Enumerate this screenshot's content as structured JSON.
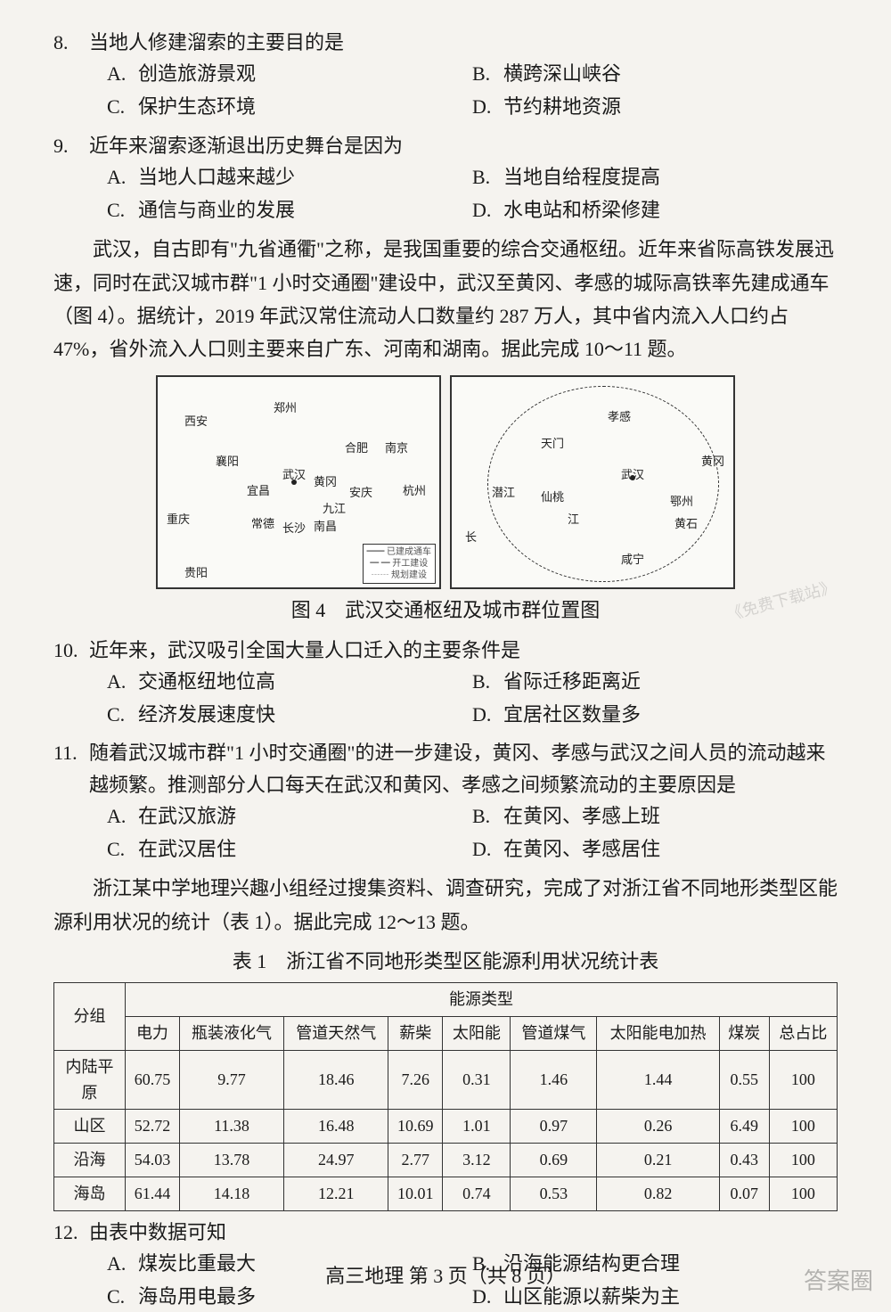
{
  "q8": {
    "num": "8.",
    "stem": "当地人修建溜索的主要目的是",
    "A": "创造旅游景观",
    "B": "横跨深山峡谷",
    "C": "保护生态环境",
    "D": "节约耕地资源"
  },
  "q9": {
    "num": "9.",
    "stem": "近年来溜索逐渐退出历史舞台是因为",
    "A": "当地人口越来越少",
    "B": "当地自给程度提高",
    "C": "通信与商业的发展",
    "D": "水电站和桥梁修建"
  },
  "passage_wuhan": "武汉，自古即有\"九省通衢\"之称，是我国重要的综合交通枢纽。近年来省际高铁发展迅速，同时在武汉城市群\"1 小时交通圈\"建设中，武汉至黄冈、孝感的城际高铁率先建成通车（图 4）。据统计，2019 年武汉常住流动人口数量约 287 万人，其中省内流入人口约占 47%，省外流入人口则主要来自广东、河南和湖南。据此完成 10～11 题。",
  "figure4": {
    "caption": "图 4　武汉交通枢纽及城市群位置图",
    "map1_cities": {
      "xian": "西安",
      "zhengzhou": "郑州",
      "hefei": "合肥",
      "nanjing": "南京",
      "xiangyang": "襄阳",
      "yichang": "宜昌",
      "wuhan": "武汉",
      "huanggang": "黄冈",
      "anqing": "安庆",
      "hangzhou": "杭州",
      "jiujiang": "九江",
      "chongqing": "重庆",
      "changde": "常德",
      "changsha": "长沙",
      "nanchang": "南昌",
      "guiyang": "贵阳"
    },
    "map1_legend": {
      "l1": "已建成通车",
      "l2": "开工建设",
      "l3": "规划建设"
    },
    "map2_cities": {
      "xiaogan": "孝感",
      "tianmen": "天门",
      "wuhan": "武汉",
      "huanggang": "黄冈",
      "qianjiang": "潜江",
      "xiantao": "仙桃",
      "ezhou": "鄂州",
      "huangshi": "黄石",
      "xianning": "咸宁",
      "chang": "长",
      "jiang": "江"
    }
  },
  "q10": {
    "num": "10.",
    "stem": "近年来，武汉吸引全国大量人口迁入的主要条件是",
    "A": "交通枢纽地位高",
    "B": "省际迁移距离近",
    "C": "经济发展速度快",
    "D": "宜居社区数量多"
  },
  "q11": {
    "num": "11.",
    "stem": "随着武汉城市群\"1 小时交通圈\"的进一步建设，黄冈、孝感与武汉之间人员的流动越来越频繁。推测部分人口每天在武汉和黄冈、孝感之间频繁流动的主要原因是",
    "A": "在武汉旅游",
    "B": "在黄冈、孝感上班",
    "C": "在武汉居住",
    "D": "在黄冈、孝感居住"
  },
  "passage_zhejiang": "浙江某中学地理兴趣小组经过搜集资料、调查研究，完成了对浙江省不同地形类型区能源利用状况的统计（表 1）。据此完成 12～13 题。",
  "table1": {
    "title": "表 1　浙江省不同地形类型区能源利用状况统计表",
    "row_header": "分组",
    "type_header": "能源类型",
    "columns": [
      "电力",
      "瓶装液化气",
      "管道天然气",
      "薪柴",
      "太阳能",
      "管道煤气",
      "太阳能电加热",
      "煤炭",
      "总占比"
    ],
    "rows": [
      {
        "label": "内陆平原",
        "values": [
          "60.75",
          "9.77",
          "18.46",
          "7.26",
          "0.31",
          "1.46",
          "1.44",
          "0.55",
          "100"
        ]
      },
      {
        "label": "山区",
        "values": [
          "52.72",
          "11.38",
          "16.48",
          "10.69",
          "1.01",
          "0.97",
          "0.26",
          "6.49",
          "100"
        ]
      },
      {
        "label": "沿海",
        "values": [
          "54.03",
          "13.78",
          "24.97",
          "2.77",
          "3.12",
          "0.69",
          "0.21",
          "0.43",
          "100"
        ]
      },
      {
        "label": "海岛",
        "values": [
          "61.44",
          "14.18",
          "12.21",
          "10.01",
          "0.74",
          "0.53",
          "0.82",
          "0.07",
          "100"
        ]
      }
    ]
  },
  "q12": {
    "num": "12.",
    "stem": "由表中数据可知",
    "A": "煤炭比重最大",
    "B": "沿海能源结构更合理",
    "C": "海岛用电最多",
    "D": "山区能源以薪柴为主"
  },
  "footer": "高三地理 第 3 页（共 8 页）",
  "watermark": "《免费下载站》",
  "corner": "答案圈",
  "opt_labels": {
    "A": "A.",
    "B": "B.",
    "C": "C.",
    "D": "D."
  }
}
